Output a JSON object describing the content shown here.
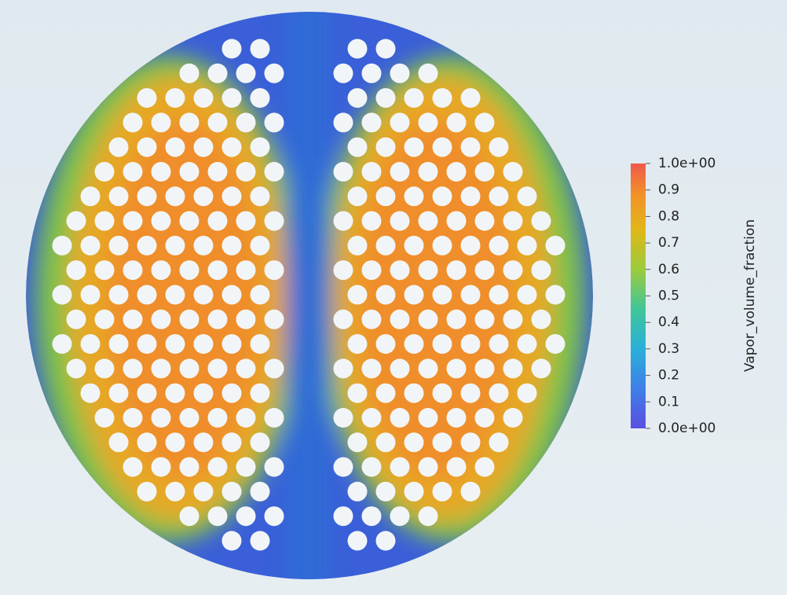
{
  "colorbar": {
    "title": "Vapor_volume_fraction",
    "range": [
      0,
      1
    ],
    "ticks": [
      {
        "value": 1,
        "label": "1.0e+00"
      },
      0.9,
      0.8,
      0.7,
      0.6,
      0.5,
      0.4,
      0.3,
      0.2,
      0.1,
      {
        "value": 0,
        "label": "0.0e+00"
      }
    ]
  }
}
